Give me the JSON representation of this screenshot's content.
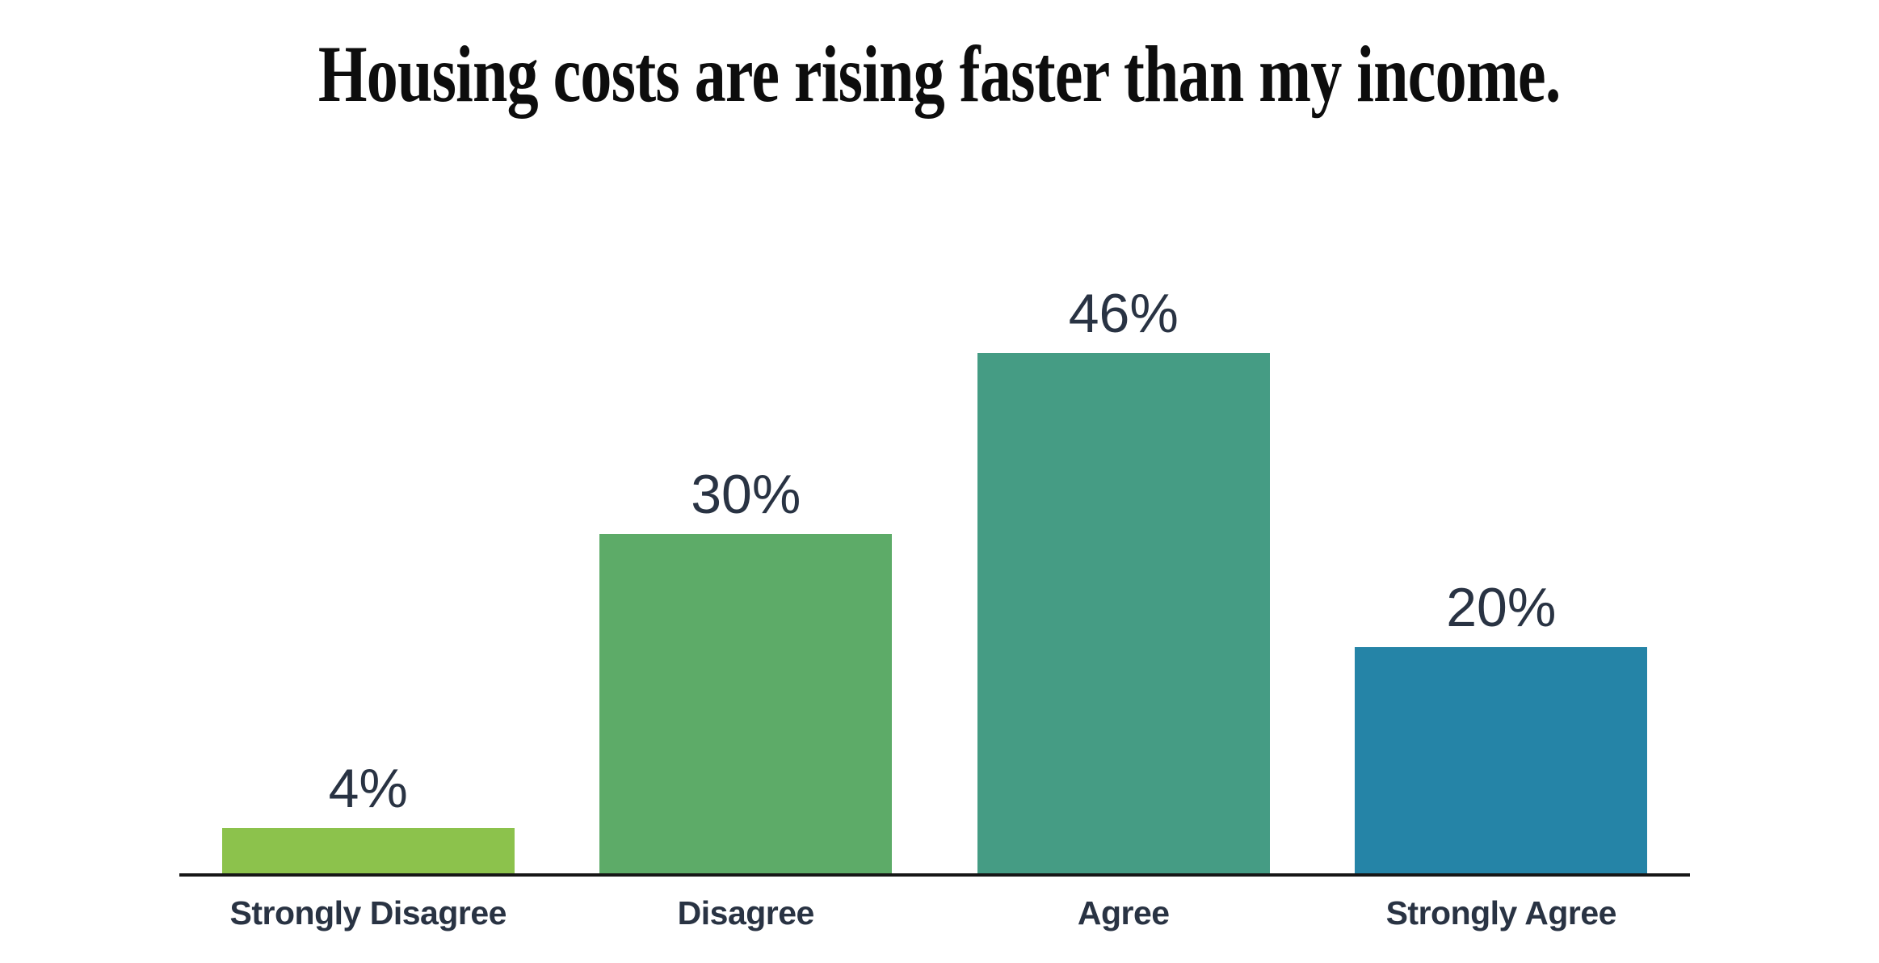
{
  "title": "Housing costs are rising faster than my income.",
  "colors": {
    "title_text": "#0d0d0d",
    "label_text": "#293343",
    "axis_line": "#161616",
    "background": "#ffffff"
  },
  "chart_data": {
    "type": "bar",
    "title": "Housing costs are rising faster than my income.",
    "categories": [
      "Strongly Disagree",
      "Disagree",
      "Agree",
      "Strongly Agree"
    ],
    "values": [
      4,
      30,
      46,
      20
    ],
    "value_labels": [
      "4%",
      "30%",
      "46%",
      "20%"
    ],
    "bar_colors": [
      "#8cc24c",
      "#5dab68",
      "#459c84",
      "#2584a7"
    ],
    "xlabel": "",
    "ylabel": "",
    "ylim": [
      0,
      50
    ],
    "grid": false,
    "legend": false,
    "y_axis_visible": false,
    "value_label_format": "percent"
  }
}
